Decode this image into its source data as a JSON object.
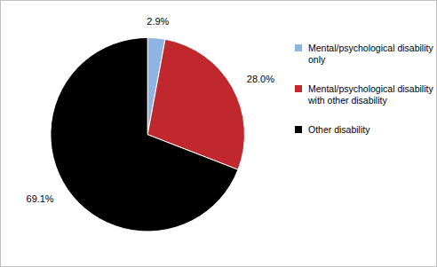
{
  "chart_data": {
    "type": "pie",
    "categories": [
      "Mental/psychological disability only",
      "Mental/psychological disability with other disability",
      "Other disability"
    ],
    "values": [
      2.9,
      28.0,
      69.1
    ],
    "value_labels": [
      "2.9%",
      "28.0%",
      "69.1%"
    ],
    "colors": [
      "#8eb4e3",
      "#c0282d",
      "#000000"
    ],
    "data_labels": true,
    "legend": "right"
  }
}
